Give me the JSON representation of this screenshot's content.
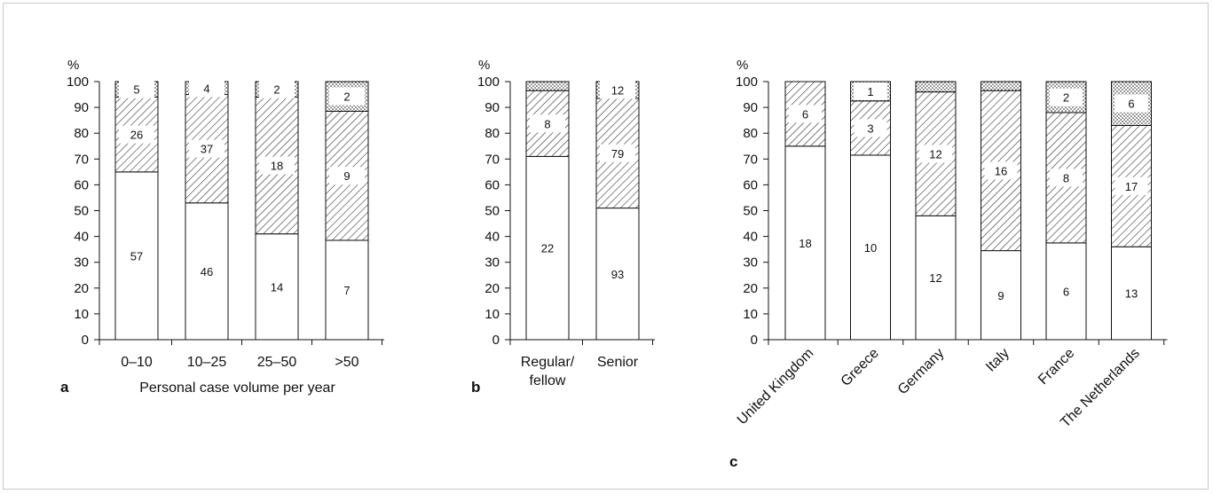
{
  "chart_data": [
    {
      "type": "bar",
      "stacked": true,
      "panel_letter": "a",
      "xlabel": "Personal case volume per year",
      "ylabel": "%",
      "ylim": [
        0,
        100
      ],
      "yticks": [
        "0",
        "10",
        "20",
        "30",
        "40",
        "50",
        "60",
        "70",
        "80",
        "90",
        "100"
      ],
      "categories": [
        "0–10",
        "10–25",
        "25–50",
        ">50"
      ],
      "series": [
        {
          "pattern": "plain",
          "values": [
            65,
            53,
            41,
            38.5
          ],
          "labels": [
            "57",
            "46",
            "14",
            "7"
          ]
        },
        {
          "pattern": "hatched",
          "values": [
            29,
            42,
            53,
            50
          ],
          "labels": [
            "26",
            "37",
            "18",
            "9"
          ]
        },
        {
          "pattern": "dotted",
          "values": [
            6,
            5,
            6,
            11.5
          ],
          "labels": [
            "5",
            "4",
            "2",
            "2"
          ]
        }
      ]
    },
    {
      "type": "bar",
      "stacked": true,
      "panel_letter": "b",
      "xlabel": "",
      "ylabel": "%",
      "ylim": [
        0,
        100
      ],
      "yticks": [
        "0",
        "10",
        "20",
        "30",
        "40",
        "50",
        "60",
        "70",
        "80",
        "90",
        "100"
      ],
      "categories": [
        "Regular/\nfellow",
        "Senior"
      ],
      "series": [
        {
          "pattern": "plain",
          "values": [
            71,
            51
          ],
          "labels": [
            "22",
            "93"
          ]
        },
        {
          "pattern": "hatched",
          "values": [
            25.5,
            42.5
          ],
          "labels": [
            "8",
            "79"
          ]
        },
        {
          "pattern": "dotted",
          "values": [
            3.5,
            6.5
          ],
          "labels": [
            "",
            "12"
          ]
        }
      ]
    },
    {
      "type": "bar",
      "stacked": true,
      "panel_letter": "c",
      "xlabel": "",
      "ylabel": "%",
      "ylim": [
        0,
        100
      ],
      "yticks": [
        "0",
        "10",
        "20",
        "30",
        "40",
        "50",
        "60",
        "70",
        "80",
        "90",
        "100"
      ],
      "categories": [
        "United Kingdom",
        "Greece",
        "Germany",
        "Italy",
        "France",
        "The Netherlands"
      ],
      "series": [
        {
          "pattern": "plain",
          "values": [
            75,
            71.5,
            48,
            34.5,
            37.5,
            36
          ],
          "labels": [
            "18",
            "10",
            "12",
            "9",
            "6",
            "13"
          ]
        },
        {
          "pattern": "hatched",
          "values": [
            25,
            21,
            48,
            62,
            50.5,
            47
          ],
          "labels": [
            "6",
            "3",
            "12",
            "16",
            "8",
            "17"
          ]
        },
        {
          "pattern": "dotted",
          "values": [
            0,
            7.5,
            4,
            3.5,
            12,
            17
          ],
          "labels": [
            "",
            "1",
            "",
            "",
            "2",
            "6"
          ]
        }
      ]
    }
  ]
}
